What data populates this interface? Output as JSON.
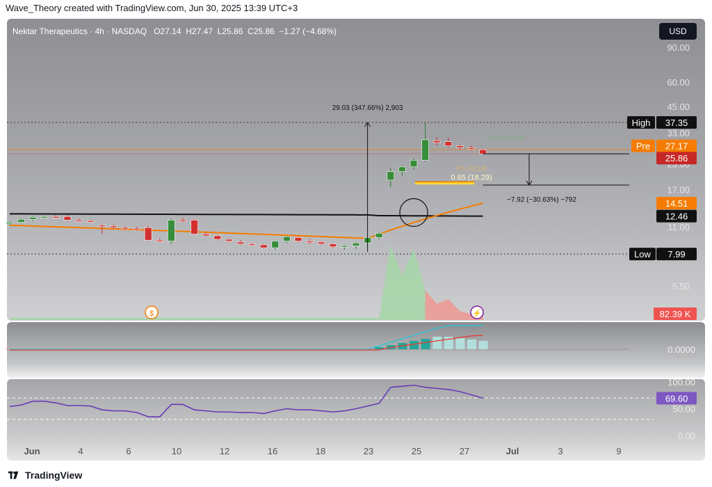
{
  "caption": "Wave_Theory created with TradingView.com, Jun 30, 2025 13:39 UTC+3",
  "legend": {
    "symbol": "Nektar Therapeutics · 4h · NASDAQ",
    "o_label": "O",
    "o": "27.14",
    "h_label": "H",
    "h": "27.47",
    "l_label": "L",
    "l": "25.86",
    "c_label": "C",
    "c": "25.86",
    "change": "−1.27 (−4.68%)"
  },
  "currency": "USD",
  "footer": "TradingView",
  "chart_data": {
    "type": "candlestick",
    "price_axis_ticks": [
      "90.00",
      "60.00",
      "45.00",
      "33.00",
      "23.00",
      "17.00",
      "11.00",
      "5.50"
    ],
    "x_ticks": [
      "Jun",
      "4",
      "6",
      "10",
      "12",
      "16",
      "18",
      "23",
      "25",
      "27",
      "Jul",
      "3",
      "9"
    ],
    "candles": [
      {
        "o": 11.4,
        "h": 11.7,
        "l": 11.2,
        "c": 11.6
      },
      {
        "o": 11.6,
        "h": 12.1,
        "l": 11.5,
        "c": 12.0
      },
      {
        "o": 12.0,
        "h": 12.4,
        "l": 11.8,
        "c": 12.3
      },
      {
        "o": 12.3,
        "h": 12.5,
        "l": 12.1,
        "c": 12.4
      },
      {
        "o": 12.4,
        "h": 12.6,
        "l": 12.2,
        "c": 12.3
      },
      {
        "o": 12.4,
        "h": 12.6,
        "l": 11.8,
        "c": 11.9
      },
      {
        "o": 11.9,
        "h": 12.1,
        "l": 11.7,
        "c": 11.8
      },
      {
        "o": 11.8,
        "h": 11.9,
        "l": 11.6,
        "c": 11.7
      },
      {
        "o": 11.2,
        "h": 11.4,
        "l": 10.1,
        "c": 11.1
      },
      {
        "o": 11.1,
        "h": 11.3,
        "l": 10.7,
        "c": 10.9
      },
      {
        "o": 10.9,
        "h": 11.1,
        "l": 10.6,
        "c": 10.8
      },
      {
        "o": 10.8,
        "h": 11.0,
        "l": 10.5,
        "c": 10.7
      },
      {
        "o": 10.9,
        "h": 11.1,
        "l": 9.3,
        "c": 9.4
      },
      {
        "o": 9.4,
        "h": 9.6,
        "l": 9.2,
        "c": 9.3
      },
      {
        "o": 9.3,
        "h": 12.1,
        "l": 9.0,
        "c": 11.9
      },
      {
        "o": 11.9,
        "h": 12.2,
        "l": 11.6,
        "c": 11.8
      },
      {
        "o": 11.9,
        "h": 12.0,
        "l": 10.0,
        "c": 10.1
      },
      {
        "o": 10.1,
        "h": 10.3,
        "l": 9.8,
        "c": 9.9
      },
      {
        "o": 9.9,
        "h": 10.0,
        "l": 9.4,
        "c": 9.5
      },
      {
        "o": 9.5,
        "h": 9.6,
        "l": 9.2,
        "c": 9.3
      },
      {
        "o": 9.2,
        "h": 9.4,
        "l": 8.9,
        "c": 9.0
      },
      {
        "o": 9.0,
        "h": 9.1,
        "l": 8.8,
        "c": 8.9
      },
      {
        "o": 8.9,
        "h": 9.0,
        "l": 8.5,
        "c": 8.6
      },
      {
        "o": 8.6,
        "h": 9.4,
        "l": 8.4,
        "c": 9.3
      },
      {
        "o": 9.3,
        "h": 9.9,
        "l": 9.1,
        "c": 9.8
      },
      {
        "o": 9.7,
        "h": 9.8,
        "l": 9.2,
        "c": 9.3
      },
      {
        "o": 9.3,
        "h": 9.5,
        "l": 9.0,
        "c": 9.2
      },
      {
        "o": 9.2,
        "h": 9.3,
        "l": 8.9,
        "c": 9.0
      },
      {
        "o": 9.0,
        "h": 9.1,
        "l": 8.6,
        "c": 8.7
      },
      {
        "o": 8.7,
        "h": 8.9,
        "l": 8.4,
        "c": 8.8
      },
      {
        "o": 8.8,
        "h": 9.2,
        "l": 8.5,
        "c": 9.1
      },
      {
        "o": 9.1,
        "h": 9.8,
        "l": 8.9,
        "c": 9.7
      },
      {
        "o": 9.7,
        "h": 10.3,
        "l": 9.5,
        "c": 10.2
      },
      {
        "o": 19.0,
        "h": 22.0,
        "l": 17.5,
        "c": 21.0
      },
      {
        "o": 21.0,
        "h": 22.5,
        "l": 20.0,
        "c": 22.2
      },
      {
        "o": 22.2,
        "h": 24.5,
        "l": 21.5,
        "c": 24.0
      },
      {
        "o": 24.0,
        "h": 37.35,
        "l": 23.5,
        "c": 30.5
      },
      {
        "o": 30.2,
        "h": 31.5,
        "l": 28.5,
        "c": 29.5
      },
      {
        "o": 29.8,
        "h": 31.2,
        "l": 28.0,
        "c": 28.4
      },
      {
        "o": 28.4,
        "h": 28.8,
        "l": 27.2,
        "c": 27.8
      },
      {
        "o": 27.8,
        "h": 28.5,
        "l": 26.9,
        "c": 27.3
      },
      {
        "o": 27.14,
        "h": 27.47,
        "l": 25.86,
        "c": 25.86
      }
    ],
    "ma_slow": {
      "start": 12.8,
      "end": 12.46
    },
    "ma_fast": {
      "start": 11.2,
      "low": 9.6,
      "end": 14.51
    },
    "labels": {
      "high_label": "High",
      "high": "37.35",
      "pre_label": "Pre",
      "pre": "27.17",
      "last": "25.86",
      "ma_fast": "14.51",
      "ma_slow": "12.46",
      "low_label": "Low",
      "low": "7.99",
      "volume": "82.39 K",
      "macd_zero": "0.0000",
      "rsi_value": "69.60",
      "rsi_100": "100.00",
      "rsi_50": "50.00",
      "rsi_0": "0.00"
    },
    "annotations": {
      "measure_up": "29.03 (347.66%) 2,903",
      "measure_down": "−7.92 (−30.63%) −792",
      "fib_065": "0.65 (18.29)",
      "fib_above": "0.5 (22.18)",
      "fib_upper": "0.382 (26.06)"
    },
    "volume": [
      3,
      3,
      3,
      3,
      3,
      3,
      3,
      3,
      3,
      3,
      3,
      3,
      3,
      3,
      3,
      3,
      3,
      3,
      3,
      3,
      3,
      3,
      3,
      3,
      3,
      3,
      3,
      3,
      3,
      3,
      3,
      3,
      3,
      100,
      60,
      95,
      40,
      22,
      28,
      12,
      8,
      6
    ],
    "rsi": [
      54,
      57,
      64,
      64,
      61,
      56,
      56,
      55,
      48,
      46,
      46,
      43,
      35,
      35,
      58,
      58,
      48,
      46,
      44,
      44,
      43,
      43,
      41,
      46,
      50,
      48,
      48,
      46,
      44,
      46,
      50,
      55,
      60,
      90,
      92,
      94,
      90,
      88,
      86,
      82,
      76,
      69.6
    ]
  }
}
